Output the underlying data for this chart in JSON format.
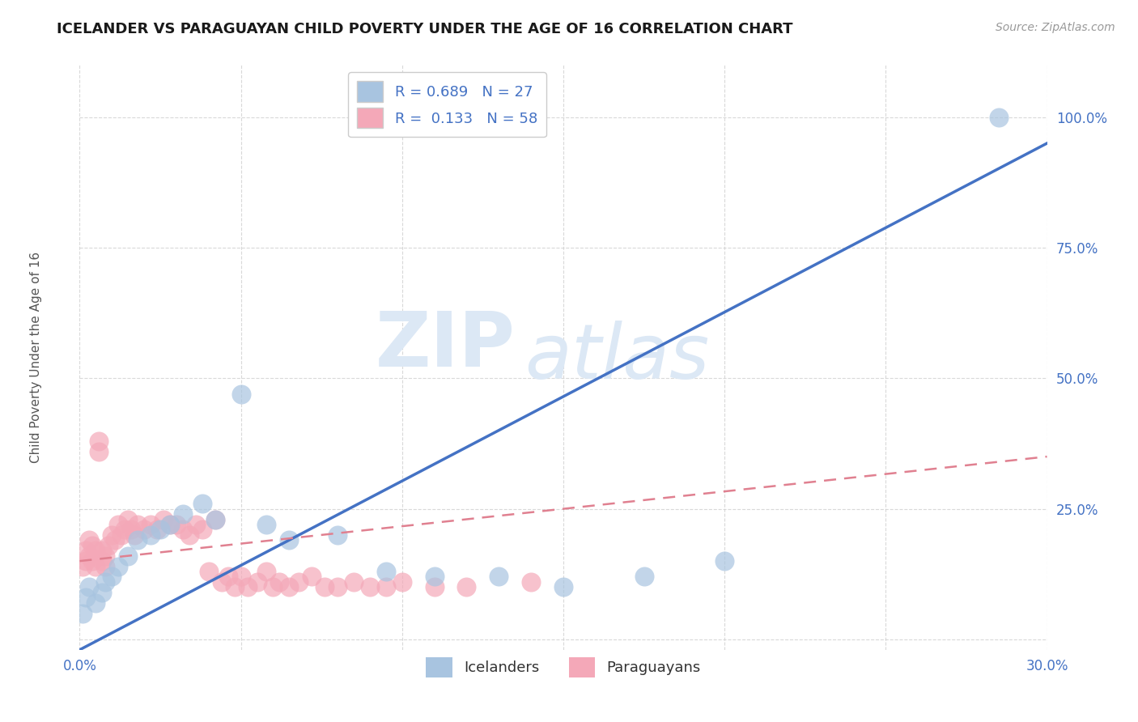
{
  "title": "ICELANDER VS PARAGUAYAN CHILD POVERTY UNDER THE AGE OF 16 CORRELATION CHART",
  "source": "Source: ZipAtlas.com",
  "ylabel_label": "Child Poverty Under the Age of 16",
  "xlim": [
    0.0,
    0.3
  ],
  "ylim": [
    -0.02,
    1.1
  ],
  "xticks": [
    0.0,
    0.05,
    0.1,
    0.15,
    0.2,
    0.25,
    0.3
  ],
  "xtick_labels": [
    "0.0%",
    "",
    "",
    "",
    "",
    "",
    "30.0%"
  ],
  "yticks": [
    0.0,
    0.25,
    0.5,
    0.75,
    1.0
  ],
  "ytick_labels": [
    "",
    "25.0%",
    "50.0%",
    "75.0%",
    "100.0%"
  ],
  "icelanders_x": [
    0.001,
    0.002,
    0.003,
    0.005,
    0.007,
    0.008,
    0.01,
    0.012,
    0.015,
    0.018,
    0.022,
    0.025,
    0.028,
    0.032,
    0.038,
    0.042,
    0.05,
    0.058,
    0.065,
    0.08,
    0.095,
    0.11,
    0.13,
    0.15,
    0.175,
    0.2,
    0.285
  ],
  "icelanders_y": [
    0.05,
    0.08,
    0.1,
    0.07,
    0.09,
    0.11,
    0.12,
    0.14,
    0.16,
    0.19,
    0.2,
    0.21,
    0.22,
    0.24,
    0.26,
    0.23,
    0.47,
    0.22,
    0.19,
    0.2,
    0.13,
    0.12,
    0.12,
    0.1,
    0.12,
    0.15,
    1.0
  ],
  "paraguayans_x": [
    0.001,
    0.002,
    0.002,
    0.003,
    0.003,
    0.004,
    0.004,
    0.005,
    0.005,
    0.006,
    0.006,
    0.007,
    0.007,
    0.008,
    0.008,
    0.009,
    0.01,
    0.011,
    0.012,
    0.013,
    0.014,
    0.015,
    0.016,
    0.017,
    0.018,
    0.02,
    0.022,
    0.024,
    0.026,
    0.028,
    0.03,
    0.032,
    0.034,
    0.036,
    0.038,
    0.04,
    0.042,
    0.044,
    0.046,
    0.048,
    0.05,
    0.052,
    0.055,
    0.058,
    0.06,
    0.062,
    0.065,
    0.068,
    0.072,
    0.076,
    0.08,
    0.085,
    0.09,
    0.095,
    0.1,
    0.11,
    0.12,
    0.14
  ],
  "paraguayans_y": [
    0.14,
    0.17,
    0.15,
    0.19,
    0.16,
    0.18,
    0.15,
    0.17,
    0.14,
    0.36,
    0.38,
    0.17,
    0.15,
    0.16,
    0.14,
    0.18,
    0.2,
    0.19,
    0.22,
    0.2,
    0.21,
    0.23,
    0.21,
    0.2,
    0.22,
    0.21,
    0.22,
    0.21,
    0.23,
    0.22,
    0.22,
    0.21,
    0.2,
    0.22,
    0.21,
    0.13,
    0.23,
    0.11,
    0.12,
    0.1,
    0.12,
    0.1,
    0.11,
    0.13,
    0.1,
    0.11,
    0.1,
    0.11,
    0.12,
    0.1,
    0.1,
    0.11,
    0.1,
    0.1,
    0.11,
    0.1,
    0.1,
    0.11
  ],
  "icelanders_color": "#a8c4e0",
  "paraguayans_color": "#f4a8b8",
  "icelanders_line_color": "#4472c4",
  "paraguayans_line_color": "#e08090",
  "legend_r_iceland": "0.689",
  "legend_n_iceland": "27",
  "legend_r_paraguay": "0.133",
  "legend_n_paraguay": "58",
  "watermark_part1": "ZIP",
  "watermark_part2": "atlas",
  "background_color": "#ffffff",
  "grid_color": "#d0d0d0",
  "tick_color": "#4472c4",
  "ylabel_color": "#555555"
}
